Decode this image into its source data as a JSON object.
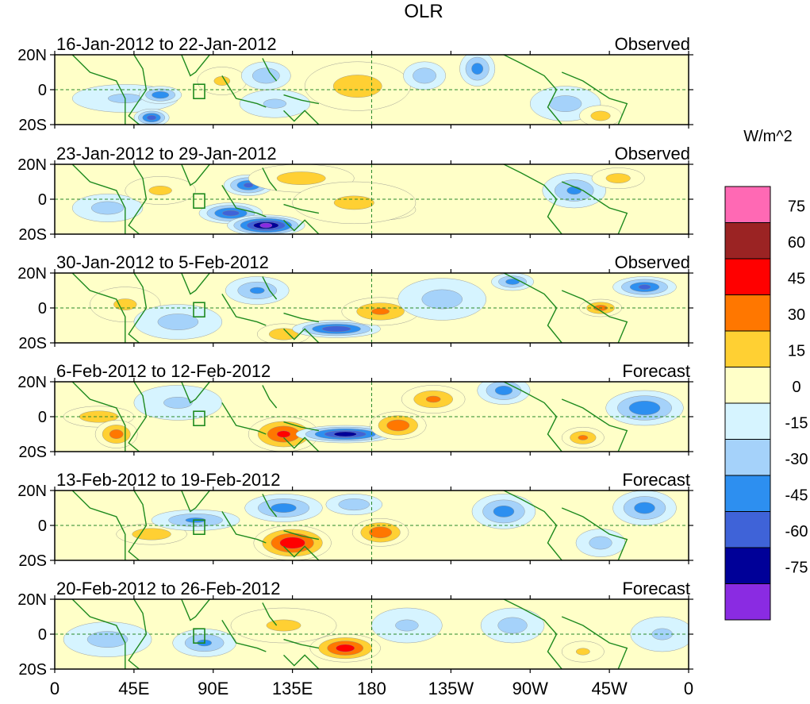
{
  "chart_data": {
    "type": "heatmap",
    "title": "OLR",
    "units": "W/m^2",
    "x_ticks": [
      "0",
      "45E",
      "90E",
      "135E",
      "180",
      "135W",
      "90W",
      "45W",
      "0"
    ],
    "y_ticks": [
      "20N",
      "0",
      "20S"
    ],
    "xlim": [
      0,
      360
    ],
    "ylim": [
      -20,
      20
    ],
    "reference_lines": {
      "equator_lat": 0,
      "dateline_lon": 180
    },
    "colorbar": {
      "labels": [
        "75",
        "60",
        "45",
        "30",
        "15",
        "0",
        "-15",
        "-30",
        "-45",
        "-60",
        "-75"
      ],
      "levels": [
        75,
        60,
        45,
        30,
        15,
        0,
        -15,
        -30,
        -45,
        -60,
        -75
      ],
      "colors": [
        "#ff69b4",
        "#9b2323",
        "#ff0000",
        "#ff7700",
        "#ffd033",
        "#ffffc8",
        "#d6f4ff",
        "#a5d2fa",
        "#2d8ff0",
        "#3f63d8",
        "#000098",
        "#8a2be2"
      ]
    },
    "panels": [
      {
        "period": "16-Jan-2012 to 22-Jan-2012",
        "kind": "Observed",
        "anomalies": [
          {
            "lon": 40,
            "lat": -5,
            "value": -20,
            "rlon": 30,
            "rlat": 8
          },
          {
            "lon": 60,
            "lat": -3,
            "value": -45,
            "rlon": 12,
            "rlat": 5
          },
          {
            "lon": 55,
            "lat": -16,
            "value": -55,
            "rlon": 10,
            "rlat": 5
          },
          {
            "lon": 95,
            "lat": 5,
            "value": 20,
            "rlon": 14,
            "rlat": 8
          },
          {
            "lon": 120,
            "lat": 8,
            "value": -30,
            "rlon": 14,
            "rlat": 8
          },
          {
            "lon": 125,
            "lat": -8,
            "value": -20,
            "rlon": 20,
            "rlat": 8
          },
          {
            "lon": 168,
            "lat": 2,
            "value": 50,
            "rlon": 18,
            "rlat": 10
          },
          {
            "lon": 172,
            "lat": 2,
            "value": 25,
            "rlon": 30,
            "rlat": 14
          },
          {
            "lon": 210,
            "lat": 8,
            "value": -30,
            "rlon": 12,
            "rlat": 8
          },
          {
            "lon": 240,
            "lat": 12,
            "value": -40,
            "rlon": 10,
            "rlat": 10
          },
          {
            "lon": 290,
            "lat": -8,
            "value": -25,
            "rlon": 20,
            "rlat": 10
          },
          {
            "lon": 310,
            "lat": -15,
            "value": 25,
            "rlon": 12,
            "rlat": 6
          }
        ]
      },
      {
        "period": "23-Jan-2012 to 29-Jan-2012",
        "kind": "Observed",
        "anomalies": [
          {
            "lon": 30,
            "lat": -5,
            "value": -25,
            "rlon": 20,
            "rlat": 8
          },
          {
            "lon": 60,
            "lat": 5,
            "value": 20,
            "rlon": 20,
            "rlat": 8
          },
          {
            "lon": 100,
            "lat": -8,
            "value": -55,
            "rlon": 18,
            "rlat": 6
          },
          {
            "lon": 120,
            "lat": -15,
            "value": -80,
            "rlon": 22,
            "rlat": 6
          },
          {
            "lon": 110,
            "lat": 8,
            "value": -50,
            "rlon": 14,
            "rlat": 6
          },
          {
            "lon": 140,
            "lat": 12,
            "value": 25,
            "rlon": 30,
            "rlat": 8
          },
          {
            "lon": 185,
            "lat": -6,
            "value": 55,
            "rlon": 20,
            "rlat": 6
          },
          {
            "lon": 170,
            "lat": -2,
            "value": 20,
            "rlon": 35,
            "rlat": 12
          },
          {
            "lon": 295,
            "lat": 5,
            "value": -35,
            "rlon": 18,
            "rlat": 10
          },
          {
            "lon": 320,
            "lat": 12,
            "value": 25,
            "rlon": 15,
            "rlat": 6
          }
        ]
      },
      {
        "period": "30-Jan-2012 to 5-Feb-2012",
        "kind": "Observed",
        "anomalies": [
          {
            "lon": 40,
            "lat": 2,
            "value": 20,
            "rlon": 20,
            "rlat": 10
          },
          {
            "lon": 70,
            "lat": -8,
            "value": -25,
            "rlon": 25,
            "rlat": 10
          },
          {
            "lon": 115,
            "lat": 10,
            "value": -35,
            "rlon": 18,
            "rlat": 8
          },
          {
            "lon": 130,
            "lat": -15,
            "value": 30,
            "rlon": 15,
            "rlat": 6
          },
          {
            "lon": 160,
            "lat": -12,
            "value": -60,
            "rlon": 25,
            "rlat": 5
          },
          {
            "lon": 185,
            "lat": -2,
            "value": 35,
            "rlon": 22,
            "rlat": 8
          },
          {
            "lon": 220,
            "lat": 5,
            "value": -25,
            "rlon": 25,
            "rlat": 12
          },
          {
            "lon": 260,
            "lat": 15,
            "value": -40,
            "rlon": 12,
            "rlat": 5
          },
          {
            "lon": 335,
            "lat": 12,
            "value": -50,
            "rlon": 18,
            "rlat": 6
          },
          {
            "lon": 310,
            "lat": 0,
            "value": 40,
            "rlon": 12,
            "rlat": 5
          }
        ]
      },
      {
        "period": "6-Feb-2012 to 12-Feb-2012",
        "kind": "Forecast",
        "anomalies": [
          {
            "lon": 25,
            "lat": 0,
            "value": 30,
            "rlon": 20,
            "rlat": 6
          },
          {
            "lon": 35,
            "lat": -10,
            "value": 40,
            "rlon": 12,
            "rlat": 8
          },
          {
            "lon": 70,
            "lat": 8,
            "value": -20,
            "rlon": 25,
            "rlat": 10
          },
          {
            "lon": 130,
            "lat": -10,
            "value": 50,
            "rlon": 20,
            "rlat": 10
          },
          {
            "lon": 165,
            "lat": -10,
            "value": -70,
            "rlon": 28,
            "rlat": 5
          },
          {
            "lon": 195,
            "lat": -5,
            "value": 45,
            "rlon": 16,
            "rlat": 8
          },
          {
            "lon": 215,
            "lat": 10,
            "value": 35,
            "rlon": 18,
            "rlat": 8
          },
          {
            "lon": 255,
            "lat": 15,
            "value": -40,
            "rlon": 15,
            "rlat": 8
          },
          {
            "lon": 335,
            "lat": 5,
            "value": -45,
            "rlon": 22,
            "rlat": 10
          },
          {
            "lon": 300,
            "lat": -12,
            "value": 35,
            "rlon": 12,
            "rlat": 6
          }
        ]
      },
      {
        "period": "13-Feb-2012 to 19-Feb-2012",
        "kind": "Forecast",
        "anomalies": [
          {
            "lon": 55,
            "lat": -5,
            "value": 30,
            "rlon": 20,
            "rlat": 6
          },
          {
            "lon": 80,
            "lat": 3,
            "value": -35,
            "rlon": 25,
            "rlat": 6
          },
          {
            "lon": 130,
            "lat": 10,
            "value": -40,
            "rlon": 22,
            "rlat": 8
          },
          {
            "lon": 135,
            "lat": -10,
            "value": 60,
            "rlon": 22,
            "rlat": 10
          },
          {
            "lon": 170,
            "lat": 12,
            "value": -30,
            "rlon": 16,
            "rlat": 6
          },
          {
            "lon": 185,
            "lat": -4,
            "value": 45,
            "rlon": 16,
            "rlat": 8
          },
          {
            "lon": 255,
            "lat": 8,
            "value": -40,
            "rlon": 18,
            "rlat": 10
          },
          {
            "lon": 335,
            "lat": 10,
            "value": -40,
            "rlon": 18,
            "rlat": 10
          },
          {
            "lon": 310,
            "lat": -10,
            "value": -25,
            "rlon": 14,
            "rlat": 8
          }
        ]
      },
      {
        "period": "20-Feb-2012 to 26-Feb-2012",
        "kind": "Forecast",
        "anomalies": [
          {
            "lon": 30,
            "lat": -3,
            "value": -25,
            "rlon": 25,
            "rlat": 10
          },
          {
            "lon": 85,
            "lat": -5,
            "value": -35,
            "rlon": 18,
            "rlat": 8
          },
          {
            "lon": 130,
            "lat": 5,
            "value": 20,
            "rlon": 30,
            "rlat": 10
          },
          {
            "lon": 165,
            "lat": -8,
            "value": 55,
            "rlon": 20,
            "rlat": 8
          },
          {
            "lon": 200,
            "lat": 5,
            "value": -20,
            "rlon": 20,
            "rlat": 10
          },
          {
            "lon": 260,
            "lat": 5,
            "value": -25,
            "rlon": 18,
            "rlat": 10
          },
          {
            "lon": 300,
            "lat": -10,
            "value": 20,
            "rlon": 12,
            "rlat": 6
          },
          {
            "lon": 345,
            "lat": 0,
            "value": -20,
            "rlon": 18,
            "rlat": 10
          }
        ]
      }
    ]
  }
}
